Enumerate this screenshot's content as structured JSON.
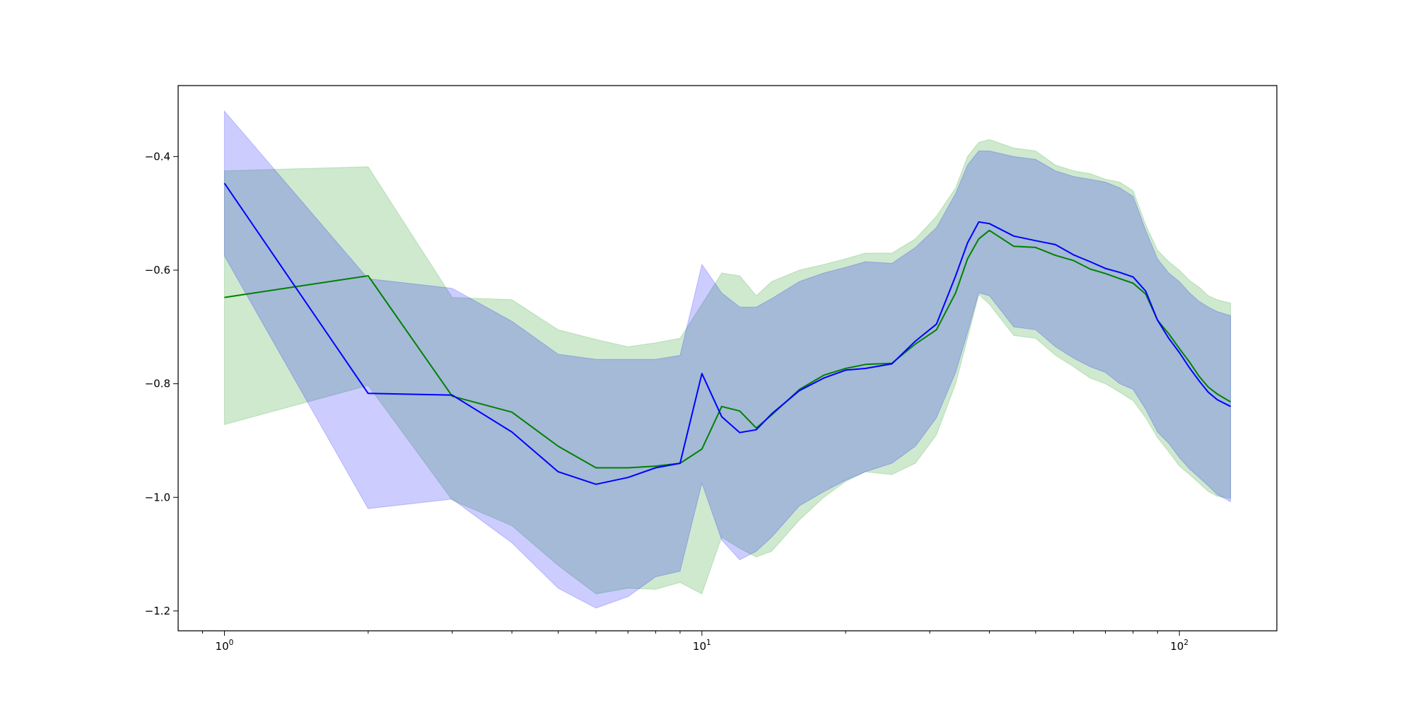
{
  "chart_data": {
    "type": "line",
    "title": "",
    "xlabel": "",
    "ylabel": "",
    "xscale": "log",
    "xlim": [
      0.8,
      160
    ],
    "ylim": [
      -1.235,
      -0.275
    ],
    "grid": false,
    "legend": "none",
    "x_ticks": [
      1,
      10,
      100
    ],
    "x_tick_labels": [
      {
        "base": "10",
        "exp": "0"
      },
      {
        "base": "10",
        "exp": "1"
      },
      {
        "base": "10",
        "exp": "2"
      }
    ],
    "y_ticks": [
      -1.2,
      -1.0,
      -0.8,
      -0.6,
      -0.4
    ],
    "y_tick_labels": [
      "−1.2",
      "−1.0",
      "−0.8",
      "−0.6",
      "−0.4"
    ],
    "series": [
      {
        "color": "#008000",
        "band_color": "#2ca02c",
        "band_opacity": 0.23,
        "x": [
          1,
          2,
          3,
          4,
          5,
          6,
          7,
          8,
          9,
          10,
          11,
          12,
          13,
          14,
          16,
          18,
          20,
          22,
          25,
          28,
          31,
          34,
          36,
          38,
          40,
          45,
          50,
          55,
          60,
          65,
          70,
          75,
          80,
          85,
          90,
          95,
          100,
          105,
          110,
          115,
          120,
          128
        ],
        "y": [
          -0.648,
          -0.61,
          -0.822,
          -0.85,
          -0.91,
          -0.948,
          -0.948,
          -0.945,
          -0.94,
          -0.915,
          -0.84,
          -0.848,
          -0.878,
          -0.855,
          -0.81,
          -0.785,
          -0.773,
          -0.766,
          -0.764,
          -0.73,
          -0.705,
          -0.64,
          -0.58,
          -0.545,
          -0.53,
          -0.558,
          -0.56,
          -0.574,
          -0.583,
          -0.598,
          -0.606,
          -0.615,
          -0.623,
          -0.642,
          -0.688,
          -0.712,
          -0.738,
          -0.762,
          -0.787,
          -0.806,
          -0.818,
          -0.832
        ],
        "lower": [
          -0.872,
          -0.803,
          -1.005,
          -1.05,
          -1.12,
          -1.17,
          -1.16,
          -1.162,
          -1.15,
          -1.17,
          -1.07,
          -1.09,
          -1.105,
          -1.095,
          -1.04,
          -1.0,
          -0.972,
          -0.955,
          -0.96,
          -0.94,
          -0.89,
          -0.8,
          -0.72,
          -0.643,
          -0.66,
          -0.715,
          -0.72,
          -0.75,
          -0.77,
          -0.79,
          -0.8,
          -0.815,
          -0.83,
          -0.86,
          -0.895,
          -0.92,
          -0.945,
          -0.96,
          -0.975,
          -0.99,
          -0.998,
          -1.002
        ],
        "upper": [
          -0.425,
          -0.418,
          -0.648,
          -0.652,
          -0.705,
          -0.722,
          -0.735,
          -0.728,
          -0.72,
          -0.66,
          -0.605,
          -0.61,
          -0.645,
          -0.62,
          -0.6,
          -0.59,
          -0.58,
          -0.57,
          -0.57,
          -0.545,
          -0.505,
          -0.455,
          -0.4,
          -0.375,
          -0.37,
          -0.385,
          -0.39,
          -0.415,
          -0.425,
          -0.43,
          -0.44,
          -0.445,
          -0.46,
          -0.52,
          -0.565,
          -0.585,
          -0.6,
          -0.618,
          -0.63,
          -0.645,
          -0.652,
          -0.658
        ]
      },
      {
        "color": "#0000ff",
        "band_color": "#0000ff",
        "band_opacity": 0.2,
        "x": [
          1,
          2,
          3,
          4,
          5,
          6,
          7,
          8,
          9,
          10,
          11,
          12,
          13,
          14,
          16,
          18,
          20,
          22,
          25,
          28,
          31,
          34,
          36,
          38,
          40,
          45,
          50,
          55,
          60,
          65,
          70,
          75,
          80,
          85,
          90,
          95,
          100,
          105,
          110,
          115,
          120,
          128
        ],
        "y": [
          -0.447,
          -0.817,
          -0.82,
          -0.885,
          -0.955,
          -0.977,
          -0.965,
          -0.948,
          -0.94,
          -0.782,
          -0.858,
          -0.886,
          -0.881,
          -0.853,
          -0.812,
          -0.79,
          -0.776,
          -0.773,
          -0.765,
          -0.725,
          -0.695,
          -0.61,
          -0.552,
          -0.515,
          -0.518,
          -0.54,
          -0.548,
          -0.555,
          -0.573,
          -0.585,
          -0.597,
          -0.604,
          -0.612,
          -0.637,
          -0.688,
          -0.72,
          -0.745,
          -0.772,
          -0.795,
          -0.815,
          -0.828,
          -0.84
        ],
        "lower": [
          -0.575,
          -1.02,
          -1.003,
          -1.08,
          -1.16,
          -1.195,
          -1.175,
          -1.14,
          -1.13,
          -0.975,
          -1.075,
          -1.11,
          -1.095,
          -1.07,
          -1.015,
          -0.99,
          -0.97,
          -0.955,
          -0.94,
          -0.91,
          -0.86,
          -0.78,
          -0.71,
          -0.64,
          -0.645,
          -0.7,
          -0.705,
          -0.735,
          -0.755,
          -0.77,
          -0.78,
          -0.8,
          -0.81,
          -0.845,
          -0.885,
          -0.905,
          -0.93,
          -0.95,
          -0.965,
          -0.98,
          -0.995,
          -1.008
        ],
        "upper": [
          -0.32,
          -0.615,
          -0.632,
          -0.69,
          -0.748,
          -0.757,
          -0.757,
          -0.757,
          -0.75,
          -0.59,
          -0.64,
          -0.665,
          -0.665,
          -0.65,
          -0.62,
          -0.605,
          -0.595,
          -0.585,
          -0.588,
          -0.56,
          -0.525,
          -0.465,
          -0.415,
          -0.39,
          -0.39,
          -0.4,
          -0.405,
          -0.425,
          -0.435,
          -0.44,
          -0.445,
          -0.455,
          -0.47,
          -0.53,
          -0.58,
          -0.605,
          -0.62,
          -0.64,
          -0.655,
          -0.665,
          -0.673,
          -0.68
        ]
      }
    ]
  }
}
